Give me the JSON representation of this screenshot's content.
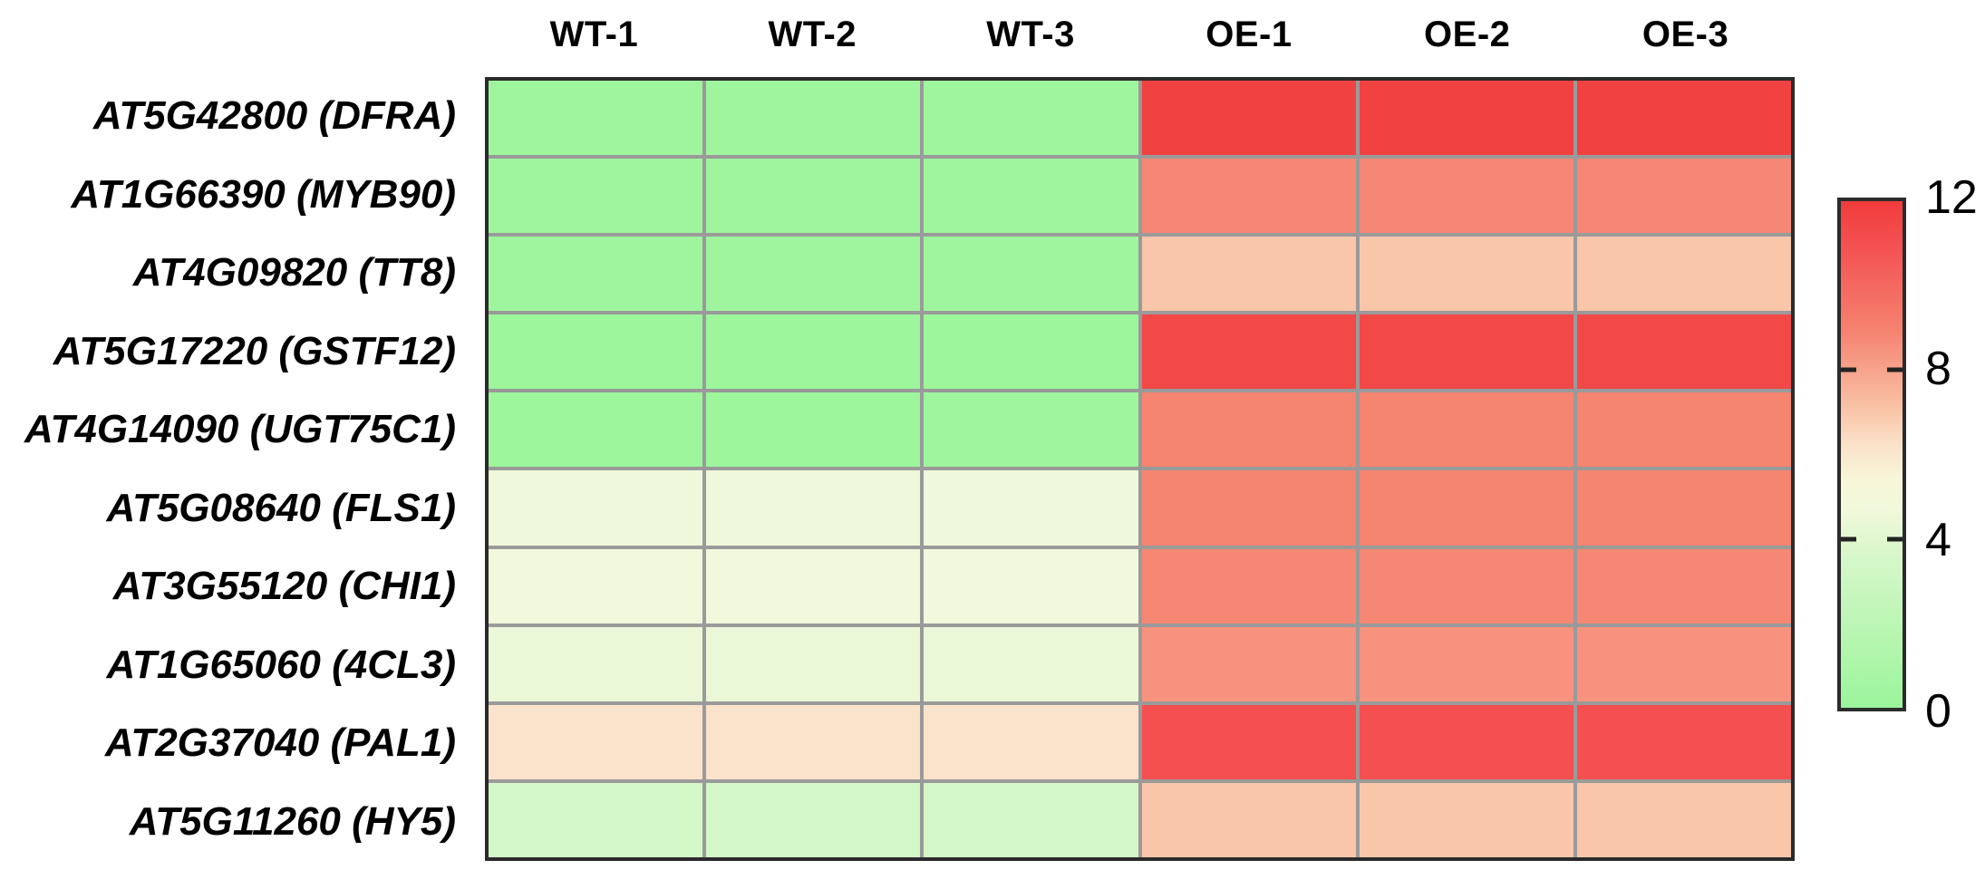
{
  "chart_data": {
    "type": "heatmap",
    "title": "",
    "columns": [
      "WT-1",
      "WT-2",
      "WT-3",
      "OE-1",
      "OE-2",
      "OE-3"
    ],
    "rows": [
      "AT5G42800 (DFRA)",
      "AT1G66390 (MYB90)",
      "AT4G09820 (TT8)",
      "AT5G17220 (GSTF12)",
      "AT4G14090 (UGT75C1)",
      "AT5G08640 (FLS1)",
      "AT3G55120 (CHI1)",
      "AT1G65060 (4CL3)",
      "AT2G37040 (PAL1)",
      "AT5G11260 (HY5)"
    ],
    "values": [
      [
        0.2,
        0.2,
        0.2,
        11.7,
        11.7,
        11.7
      ],
      [
        0.2,
        0.2,
        0.2,
        8.8,
        8.8,
        8.8
      ],
      [
        0.2,
        0.2,
        0.2,
        7.0,
        7.0,
        7.0
      ],
      [
        0.1,
        0.1,
        0.1,
        11.4,
        11.4,
        11.4
      ],
      [
        0.1,
        0.1,
        0.2,
        8.9,
        8.9,
        8.9
      ],
      [
        4.6,
        4.6,
        4.6,
        8.9,
        8.9,
        8.9
      ],
      [
        4.7,
        4.7,
        4.7,
        8.8,
        8.8,
        8.8
      ],
      [
        4.4,
        4.4,
        4.4,
        8.5,
        8.5,
        8.5
      ],
      [
        6.2,
        6.2,
        6.2,
        11.0,
        11.0,
        11.0
      ],
      [
        3.4,
        3.4,
        3.4,
        7.0,
        7.0,
        7.0
      ]
    ],
    "colorbar": {
      "min": 0,
      "max": 12,
      "ticks": [
        12,
        8,
        4,
        0
      ],
      "legend_position": "right"
    },
    "colormap": [
      {
        "value": 0,
        "color": "#9BF59B"
      },
      {
        "value": 3.5,
        "color": "#D5F7C8"
      },
      {
        "value": 4.7,
        "color": "#F1F8DC"
      },
      {
        "value": 5.4,
        "color": "#F8F6D8"
      },
      {
        "value": 6.2,
        "color": "#FAE3CA"
      },
      {
        "value": 7.0,
        "color": "#F9C6A9"
      },
      {
        "value": 9.0,
        "color": "#F5806E"
      },
      {
        "value": 11.0,
        "color": "#F45050"
      },
      {
        "value": 12,
        "color": "#F13B3B"
      }
    ],
    "grid": {
      "line_color": "#9a9a9a",
      "border_color": "#2b2b2b"
    }
  }
}
